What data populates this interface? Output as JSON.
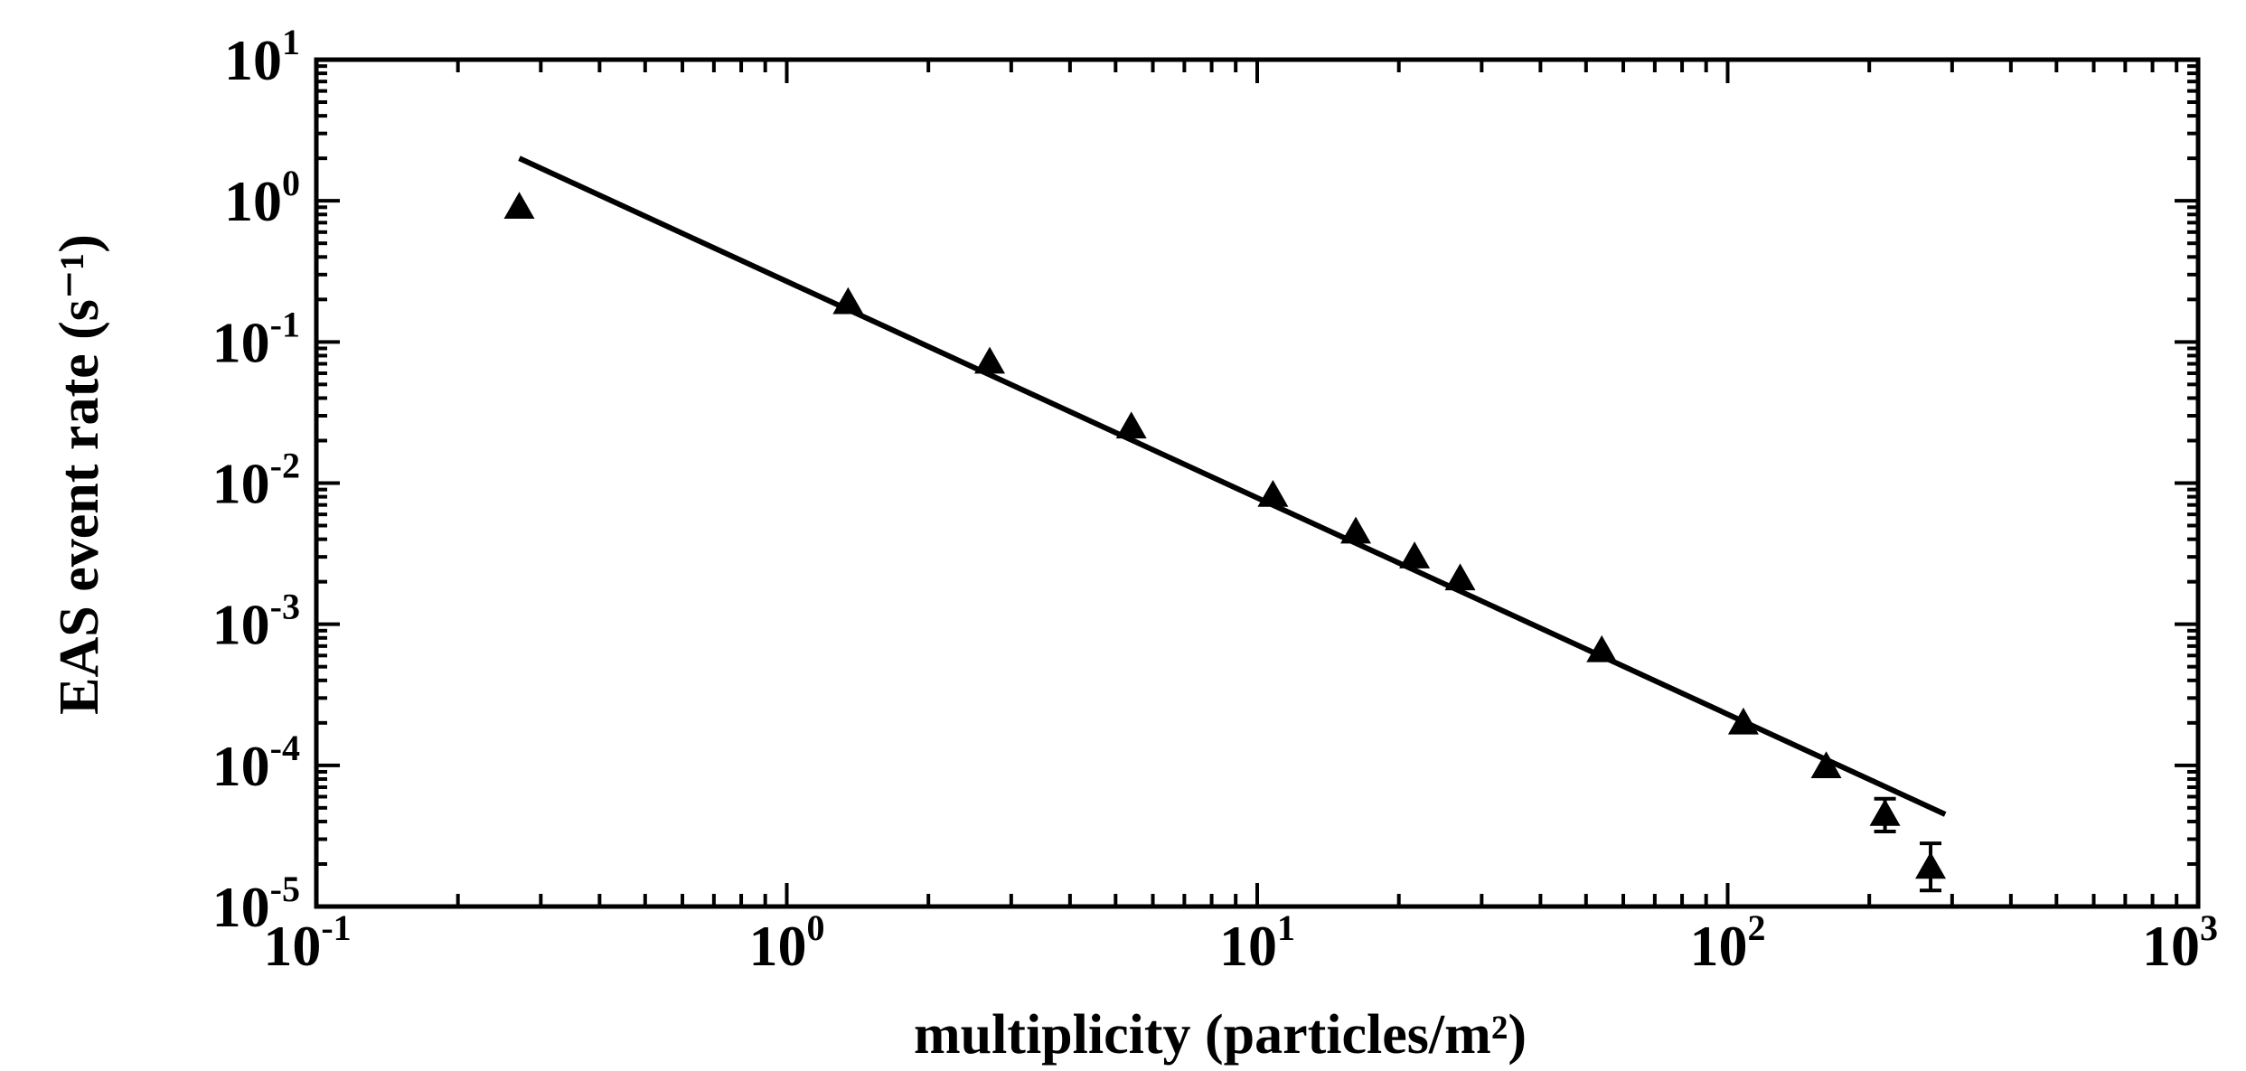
{
  "chart_data": {
    "type": "scatter",
    "title": "",
    "xlabel": "multiplicity (particles/m²)",
    "ylabel": "EAS event rate (s⁻¹)",
    "xscale": "log",
    "yscale": "log",
    "xlim": [
      0.1,
      1000
    ],
    "ylim": [
      1e-05,
      10
    ],
    "x_ticks": [
      {
        "value": 0.1,
        "base": "10",
        "exp": "-1"
      },
      {
        "value": 1,
        "base": "10",
        "exp": "0"
      },
      {
        "value": 10,
        "base": "10",
        "exp": "1"
      },
      {
        "value": 100,
        "base": "10",
        "exp": "2"
      },
      {
        "value": 1000,
        "base": "10",
        "exp": "3"
      }
    ],
    "y_ticks": [
      {
        "value": 10,
        "base": "10",
        "exp": "1"
      },
      {
        "value": 1,
        "base": "10",
        "exp": "0"
      },
      {
        "value": 0.1,
        "base": "10",
        "exp": "-1"
      },
      {
        "value": 0.01,
        "base": "10",
        "exp": "-2"
      },
      {
        "value": 0.001,
        "base": "10",
        "exp": "-3"
      },
      {
        "value": 0.0001,
        "base": "10",
        "exp": "-4"
      },
      {
        "value": 1e-05,
        "base": "10",
        "exp": "-5"
      }
    ],
    "grid": false,
    "legend": "none",
    "points": [
      {
        "x": 0.27,
        "y": 0.9
      },
      {
        "x": 1.35,
        "y": 0.19
      },
      {
        "x": 2.7,
        "y": 0.072
      },
      {
        "x": 5.4,
        "y": 0.025
      },
      {
        "x": 10.8,
        "y": 0.0082
      },
      {
        "x": 16.2,
        "y": 0.0045
      },
      {
        "x": 21.6,
        "y": 0.003
      },
      {
        "x": 27,
        "y": 0.0021
      },
      {
        "x": 54,
        "y": 0.00065
      },
      {
        "x": 108,
        "y": 0.0002
      },
      {
        "x": 162,
        "y": 9.8e-05
      },
      {
        "x": 216,
        "y": 4.5e-05,
        "err_low": 3.4e-05,
        "err_high": 5.8e-05
      },
      {
        "x": 270,
        "y": 1.9e-05,
        "err_low": 1.3e-05,
        "err_high": 2.8e-05
      }
    ],
    "fit_line": {
      "x": [
        0.27,
        290
      ],
      "y": [
        2.0,
        4.5e-05
      ]
    },
    "colors": {
      "ink": "#000000",
      "background": "#ffffff"
    }
  }
}
